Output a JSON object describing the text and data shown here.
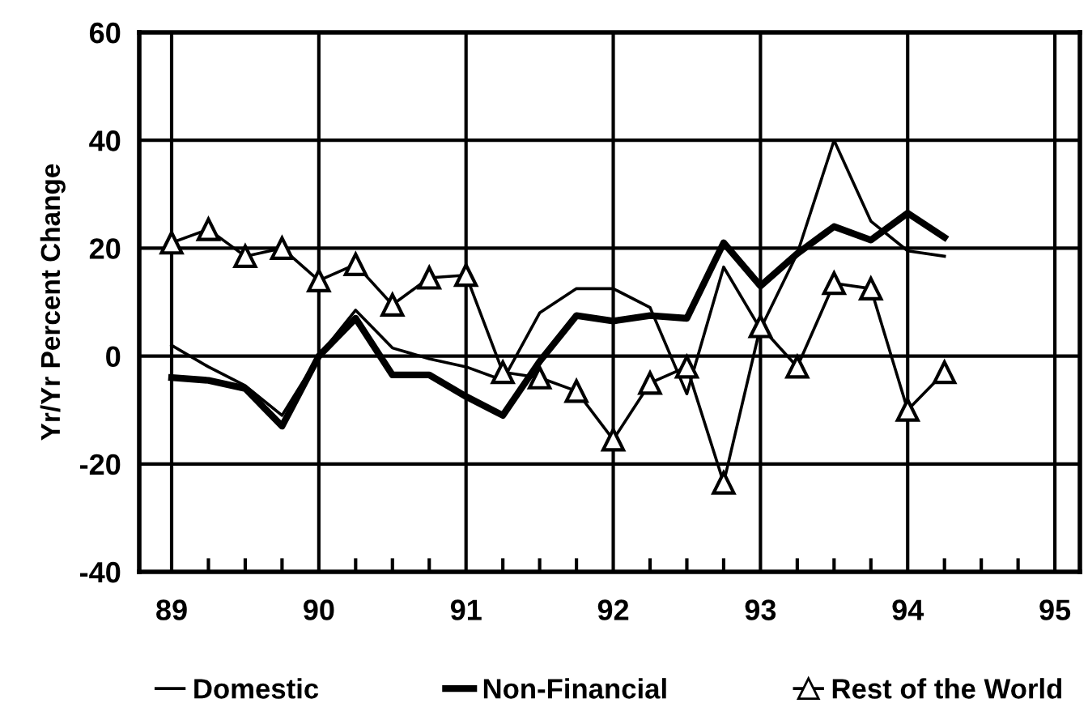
{
  "chart_data": {
    "type": "line",
    "ylabel": "Yr/Yr Percent Change",
    "x": [
      89,
      89.25,
      89.5,
      89.75,
      90,
      90.25,
      90.5,
      90.75,
      91,
      91.25,
      91.5,
      91.75,
      92,
      92.25,
      92.5,
      92.75,
      93,
      93.25,
      93.5,
      93.75,
      94,
      94.25
    ],
    "series": [
      {
        "name": "Domestic",
        "color": "#000000",
        "marker": "none",
        "values": [
          2,
          -2,
          -5.5,
          -11,
          0,
          8.5,
          1.5,
          -0.5,
          -2,
          -4.5,
          8,
          12.5,
          12.5,
          9,
          -7,
          16.5,
          5,
          19,
          40,
          25,
          19.5,
          18.5
        ]
      },
      {
        "name": "Non-Financial",
        "color": "#000000",
        "marker": "none",
        "values": [
          -4,
          -4.5,
          -6,
          -13,
          0,
          7,
          -3.5,
          -3.5,
          -7.5,
          -11,
          -1,
          7.5,
          6.5,
          7.5,
          7,
          21,
          13,
          19,
          24,
          21.5,
          26.5,
          22
        ]
      },
      {
        "name": "Rest of the World",
        "color": "#000000",
        "marker": "triangle",
        "values": [
          21,
          23.5,
          18.5,
          20,
          14,
          17,
          9.5,
          14.5,
          15,
          -3,
          -4,
          -6.5,
          -15.5,
          -5,
          -2,
          -23.5,
          5.5,
          -2,
          13.5,
          12.5,
          -10,
          -3
        ]
      }
    ],
    "xlim": [
      88.78,
      95.17
    ],
    "ylim": [
      -40,
      60
    ],
    "xticks": [
      {
        "value": 89,
        "label": "89"
      },
      {
        "value": 89.25,
        "label": null
      },
      {
        "value": 89.5,
        "label": null
      },
      {
        "value": 89.75,
        "label": null
      },
      {
        "value": 90,
        "label": "90"
      },
      {
        "value": 90.25,
        "label": null
      },
      {
        "value": 90.5,
        "label": null
      },
      {
        "value": 90.75,
        "label": null
      },
      {
        "value": 91,
        "label": "91"
      },
      {
        "value": 91.25,
        "label": null
      },
      {
        "value": 91.5,
        "label": null
      },
      {
        "value": 91.75,
        "label": null
      },
      {
        "value": 92,
        "label": "92"
      },
      {
        "value": 92.25,
        "label": null
      },
      {
        "value": 92.5,
        "label": null
      },
      {
        "value": 92.75,
        "label": null
      },
      {
        "value": 93,
        "label": "93"
      },
      {
        "value": 93.25,
        "label": null
      },
      {
        "value": 93.5,
        "label": null
      },
      {
        "value": 93.75,
        "label": null
      },
      {
        "value": 94,
        "label": "94"
      },
      {
        "value": 94.25,
        "label": null
      },
      {
        "value": 94.5,
        "label": null
      },
      {
        "value": 94.75,
        "label": null
      },
      {
        "value": 95,
        "label": "95"
      }
    ],
    "yticks": [
      -40,
      -20,
      0,
      20,
      40,
      60
    ],
    "grid": true,
    "legend": "bottom"
  }
}
